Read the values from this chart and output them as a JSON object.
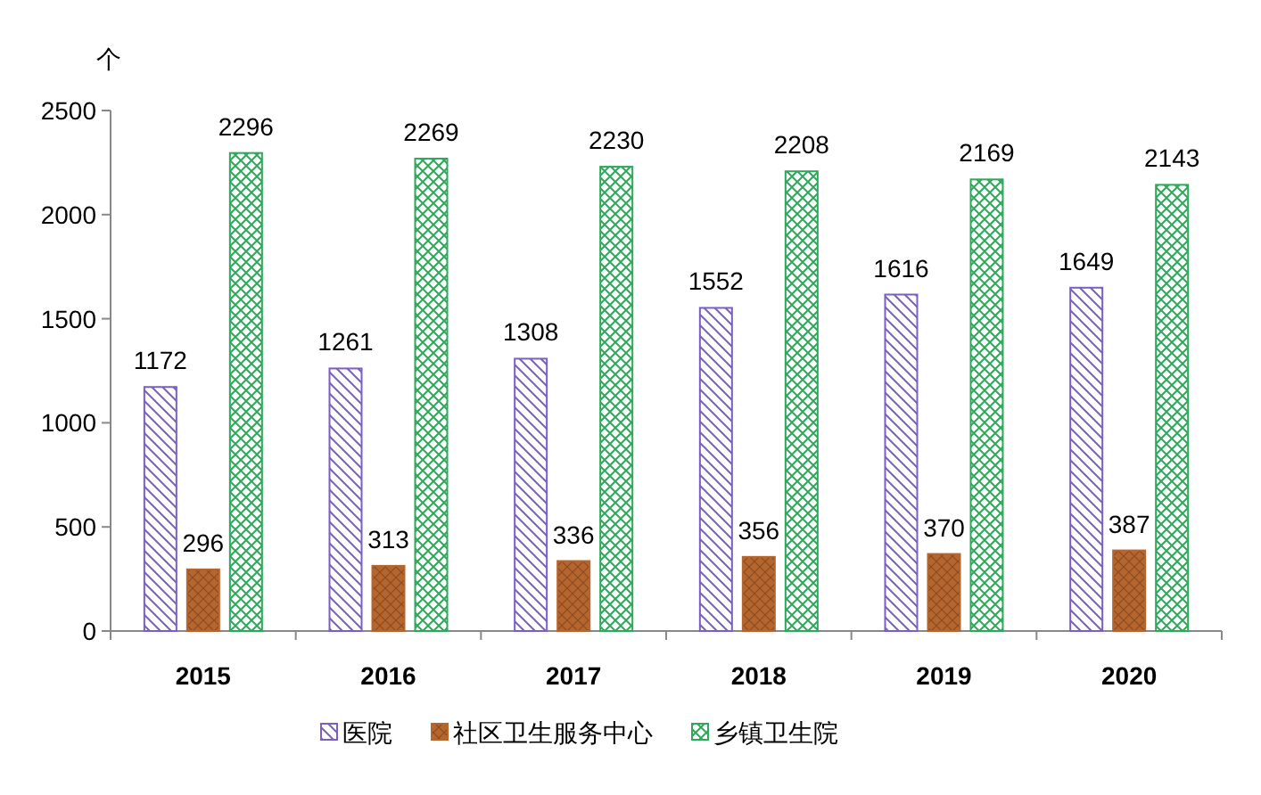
{
  "chart_data": {
    "type": "bar",
    "ylabel": "个",
    "categories": [
      "2015",
      "2016",
      "2017",
      "2018",
      "2019",
      "2020"
    ],
    "series": [
      {
        "name": "医院",
        "color": "#7b5fc7",
        "values": [
          1172,
          1261,
          1308,
          1552,
          1616,
          1649
        ]
      },
      {
        "name": "社区卫生服务中心",
        "color": "#b5652e",
        "values": [
          296,
          313,
          336,
          356,
          370,
          387
        ]
      },
      {
        "name": "乡镇卫生院",
        "color": "#2ea85a",
        "values": [
          2296,
          2269,
          2230,
          2208,
          2169,
          2143
        ]
      }
    ],
    "ylim": [
      0,
      2500
    ],
    "yticks": [
      0,
      500,
      1000,
      1500,
      2000,
      2500
    ],
    "grid": false,
    "legend": "bottom",
    "data_labels": true
  }
}
